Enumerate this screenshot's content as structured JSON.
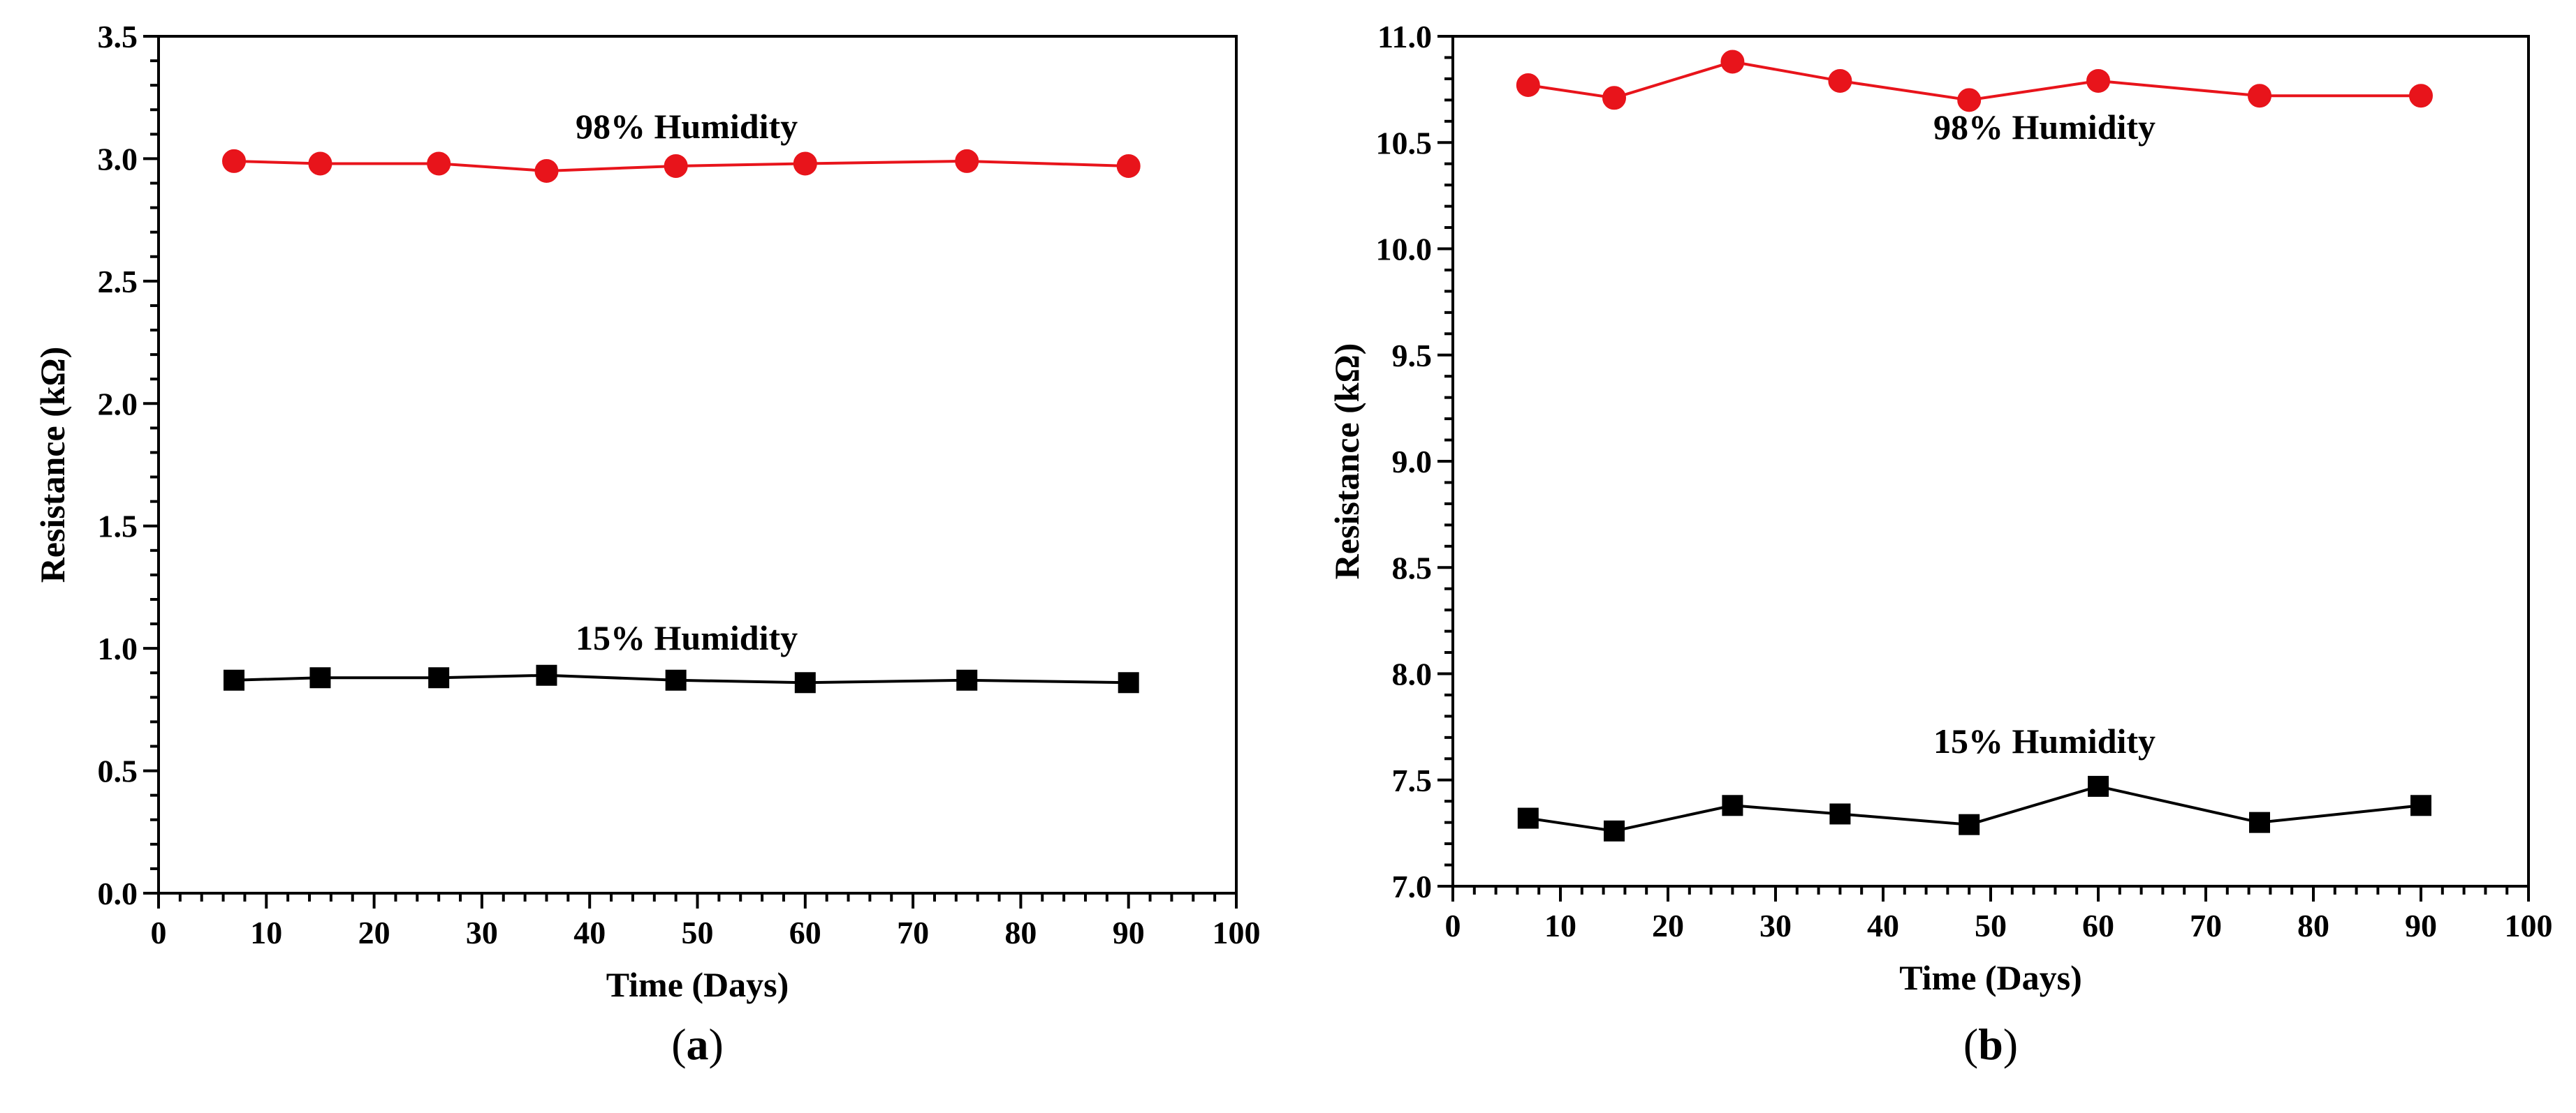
{
  "chart_data": [
    {
      "type": "line",
      "panel_label": "a",
      "xlabel": "Time (Days)",
      "ylabel": "Resistance (kΩ)",
      "xlim": [
        0,
        100
      ],
      "ylim": [
        0,
        3.5
      ],
      "x_major_step": 10,
      "x_minor_step": 2,
      "y_major_step": 0.5,
      "y_minor_step": 0.1,
      "x_tick_labels": [
        "0",
        "10",
        "20",
        "30",
        "40",
        "50",
        "60",
        "70",
        "80",
        "90",
        "100"
      ],
      "y_tick_labels": [
        "0.0",
        "0.5",
        "1.0",
        "1.5",
        "2.0",
        "2.5",
        "3.0",
        "3.5"
      ],
      "grid": false,
      "series": [
        {
          "name": "98% Humidity",
          "marker": "circle",
          "color": "#e8141b",
          "x": [
            7,
            15,
            26,
            36,
            48,
            60,
            75,
            90
          ],
          "y": [
            2.99,
            2.98,
            2.98,
            2.95,
            2.97,
            2.98,
            2.99,
            2.97
          ],
          "label_anchor": [
            49,
            3.13
          ]
        },
        {
          "name": "15% Humidity",
          "marker": "square",
          "color": "#000000",
          "x": [
            7,
            15,
            26,
            36,
            48,
            60,
            75,
            90
          ],
          "y": [
            0.87,
            0.88,
            0.88,
            0.89,
            0.87,
            0.86,
            0.87,
            0.86
          ],
          "label_anchor": [
            49,
            1.04
          ]
        }
      ]
    },
    {
      "type": "line",
      "panel_label": "b",
      "xlabel": "Time (Days)",
      "ylabel": "Resistance (kΩ)",
      "xlim": [
        0,
        100
      ],
      "ylim": [
        7.0,
        11.0
      ],
      "x_major_step": 10,
      "x_minor_step": 2,
      "y_major_step": 0.5,
      "y_minor_step": 0.1,
      "x_tick_labels": [
        "0",
        "10",
        "20",
        "30",
        "40",
        "50",
        "60",
        "70",
        "80",
        "90",
        "100"
      ],
      "y_tick_labels": [
        "7.0",
        "7.5",
        "8.0",
        "8.5",
        "9.0",
        "9.5",
        "10.0",
        "10.5",
        "11.0"
      ],
      "grid": false,
      "series": [
        {
          "name": "98% Humidity",
          "marker": "circle",
          "color": "#e8141b",
          "x": [
            7,
            15,
            26,
            36,
            48,
            60,
            75,
            90
          ],
          "y": [
            10.77,
            10.71,
            10.88,
            10.79,
            10.7,
            10.79,
            10.72,
            10.72
          ],
          "label_anchor": [
            55,
            10.57
          ]
        },
        {
          "name": "15% Humidity",
          "marker": "square",
          "color": "#000000",
          "x": [
            7,
            15,
            26,
            36,
            48,
            60,
            75,
            90
          ],
          "y": [
            7.32,
            7.26,
            7.38,
            7.34,
            7.29,
            7.47,
            7.3,
            7.38
          ],
          "label_anchor": [
            55,
            7.68
          ]
        }
      ]
    }
  ]
}
